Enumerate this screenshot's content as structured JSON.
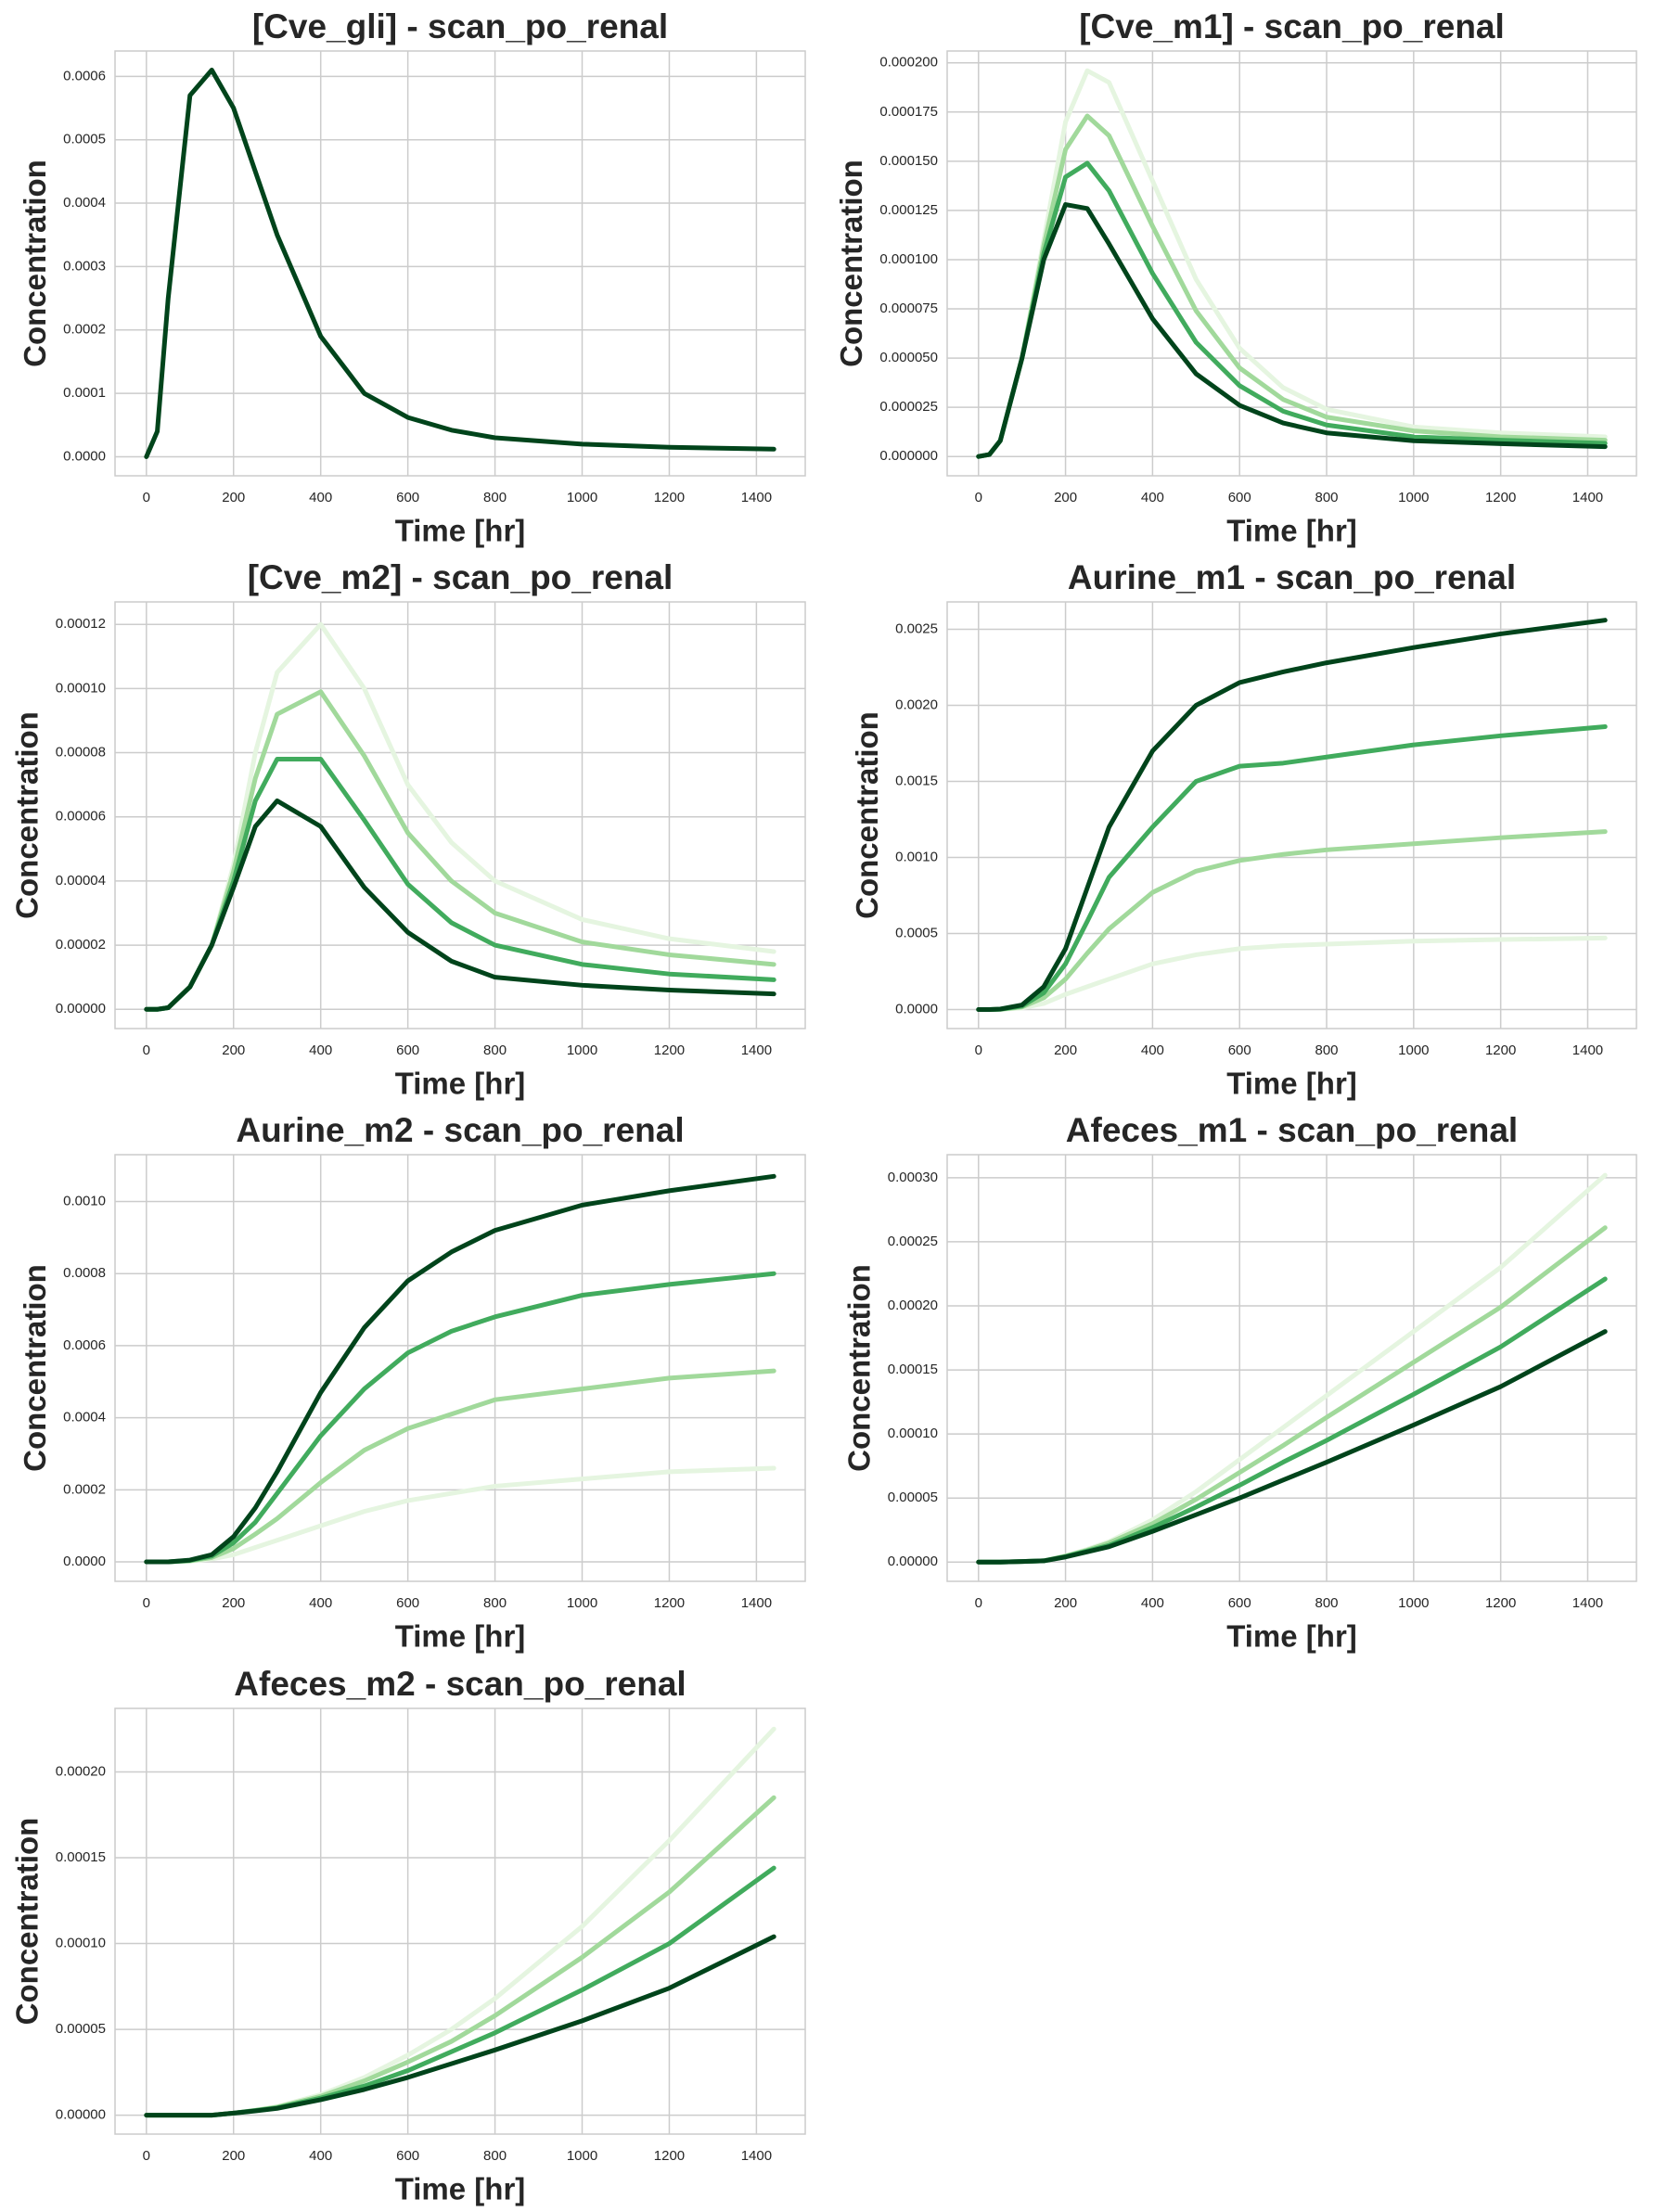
{
  "chart_data": [
    {
      "type": "line",
      "title": "[Cve_gli] - scan_po_renal",
      "xlabel": "Time [hr]",
      "ylabel": "Concentration",
      "x": [
        0,
        25,
        50,
        100,
        150,
        200,
        250,
        300,
        400,
        500,
        600,
        700,
        800,
        1000,
        1200,
        1440
      ],
      "xlim": [
        -72,
        1512
      ],
      "xticks": [
        0,
        200,
        400,
        600,
        800,
        1000,
        1200,
        1400
      ],
      "ylim": [
        -3e-05,
        0.00064
      ],
      "yticks": [
        {
          "value": 0,
          "label": "0.0000"
        },
        {
          "value": 0.0001,
          "label": "0.0001"
        },
        {
          "value": 0.0002,
          "label": "0.0002"
        },
        {
          "value": 0.0003,
          "label": "0.0003"
        },
        {
          "value": 0.0004,
          "label": "0.0004"
        },
        {
          "value": 0.0005,
          "label": "0.0005"
        },
        {
          "value": 0.0006,
          "label": "0.0006"
        }
      ],
      "grid": true,
      "series": [
        {
          "color": "#00441b",
          "values": [
            0,
            4e-05,
            0.00025,
            0.00057,
            0.00061,
            0.00055,
            0.00045,
            0.00035,
            0.00019,
            0.0001,
            6.2e-05,
            4.2e-05,
            3e-05,
            2e-05,
            1.5e-05,
            1.2e-05
          ]
        }
      ]
    },
    {
      "type": "line",
      "title": "[Cve_m1] - scan_po_renal",
      "xlabel": "Time [hr]",
      "ylabel": "Concentration",
      "x": [
        0,
        25,
        50,
        100,
        150,
        200,
        250,
        300,
        400,
        500,
        600,
        700,
        800,
        1000,
        1200,
        1440
      ],
      "xlim": [
        -72,
        1512
      ],
      "xticks": [
        0,
        200,
        400,
        600,
        800,
        1000,
        1200,
        1400
      ],
      "ylim": [
        -9.8e-06,
        0.000206
      ],
      "yticks": [
        {
          "value": 0,
          "label": "0.000000"
        },
        {
          "value": 2.5e-05,
          "label": "0.000025"
        },
        {
          "value": 5e-05,
          "label": "0.000050"
        },
        {
          "value": 7.5e-05,
          "label": "0.000075"
        },
        {
          "value": 0.0001,
          "label": "0.000100"
        },
        {
          "value": 0.000125,
          "label": "0.000125"
        },
        {
          "value": 0.00015,
          "label": "0.000150"
        },
        {
          "value": 0.000175,
          "label": "0.000175"
        },
        {
          "value": 0.0002,
          "label": "0.000200"
        }
      ],
      "grid": true,
      "series": [
        {
          "color": "#e5f5e0",
          "values": [
            0,
            1e-06,
            8e-06,
            5e-05,
            0.00011,
            0.00017,
            0.000196,
            0.00019,
            0.00014,
            9e-05,
            5.5e-05,
            3.5e-05,
            2.4e-05,
            1.5e-05,
            1.2e-05,
            1e-05
          ]
        },
        {
          "color": "#a1d99b",
          "values": [
            0,
            1e-06,
            8e-06,
            5e-05,
            0.000107,
            0.000156,
            0.000173,
            0.000163,
            0.000117,
            7.4e-05,
            4.5e-05,
            2.9e-05,
            2e-05,
            1.3e-05,
            1e-05,
            8.3e-06
          ]
        },
        {
          "color": "#41ab5d",
          "values": [
            0,
            1e-06,
            8e-06,
            5e-05,
            0.000103,
            0.000142,
            0.000149,
            0.000135,
            9.3e-05,
            5.8e-05,
            3.6e-05,
            2.3e-05,
            1.6e-05,
            1e-05,
            8.3e-06,
            6.7e-06
          ]
        },
        {
          "color": "#00441b",
          "values": [
            0,
            1e-06,
            8e-06,
            5e-05,
            0.0001,
            0.000128,
            0.000126,
            0.000108,
            7e-05,
            4.2e-05,
            2.6e-05,
            1.7e-05,
            1.2e-05,
            8e-06,
            6.5e-06,
            5e-06
          ]
        }
      ]
    },
    {
      "type": "line",
      "title": "[Cve_m2] - scan_po_renal",
      "xlabel": "Time [hr]",
      "ylabel": "Concentration",
      "x": [
        0,
        25,
        50,
        100,
        150,
        200,
        250,
        300,
        400,
        500,
        600,
        700,
        800,
        1000,
        1200,
        1440
      ],
      "xlim": [
        -72,
        1512
      ],
      "xticks": [
        0,
        200,
        400,
        600,
        800,
        1000,
        1200,
        1400
      ],
      "ylim": [
        -6e-06,
        0.000127
      ],
      "yticks": [
        {
          "value": 0,
          "label": "0.00000"
        },
        {
          "value": 2e-05,
          "label": "0.00002"
        },
        {
          "value": 4e-05,
          "label": "0.00004"
        },
        {
          "value": 6e-05,
          "label": "0.00006"
        },
        {
          "value": 8e-05,
          "label": "0.00008"
        },
        {
          "value": 0.0001,
          "label": "0.00010"
        },
        {
          "value": 0.00012,
          "label": "0.00012"
        }
      ],
      "grid": true,
      "series": [
        {
          "color": "#e5f5e0",
          "values": [
            0,
            0,
            5e-07,
            7e-06,
            2e-05,
            4.5e-05,
            8e-05,
            0.000105,
            0.00012,
            0.0001,
            7e-05,
            5.2e-05,
            4e-05,
            2.8e-05,
            2.2e-05,
            1.8e-05
          ]
        },
        {
          "color": "#a1d99b",
          "values": [
            0,
            0,
            5e-07,
            7e-06,
            2e-05,
            4.3e-05,
            7.2e-05,
            9.2e-05,
            9.9e-05,
            7.9e-05,
            5.5e-05,
            4e-05,
            3e-05,
            2.1e-05,
            1.7e-05,
            1.4e-05
          ]
        },
        {
          "color": "#41ab5d",
          "values": [
            0,
            0,
            5e-07,
            7e-06,
            2e-05,
            4e-05,
            6.5e-05,
            7.8e-05,
            7.8e-05,
            5.9e-05,
            3.9e-05,
            2.7e-05,
            2e-05,
            1.4e-05,
            1.1e-05,
            9.2e-06
          ]
        },
        {
          "color": "#00441b",
          "values": [
            0,
            0,
            5e-07,
            7e-06,
            2e-05,
            3.8e-05,
            5.7e-05,
            6.5e-05,
            5.7e-05,
            3.8e-05,
            2.4e-05,
            1.5e-05,
            1e-05,
            7.5e-06,
            6e-06,
            4.8e-06
          ]
        }
      ]
    },
    {
      "type": "line",
      "title": "Aurine_m1 - scan_po_renal",
      "xlabel": "Time [hr]",
      "ylabel": "Concentration",
      "x": [
        0,
        25,
        50,
        100,
        150,
        200,
        250,
        300,
        400,
        500,
        600,
        700,
        800,
        1000,
        1200,
        1440
      ],
      "xlim": [
        -72,
        1512
      ],
      "xticks": [
        0,
        200,
        400,
        600,
        800,
        1000,
        1200,
        1400
      ],
      "ylim": [
        -0.000125,
        0.00268
      ],
      "yticks": [
        {
          "value": 0,
          "label": "0.0000"
        },
        {
          "value": 0.0005,
          "label": "0.0005"
        },
        {
          "value": 0.001,
          "label": "0.0010"
        },
        {
          "value": 0.0015,
          "label": "0.0015"
        },
        {
          "value": 0.002,
          "label": "0.0020"
        },
        {
          "value": 0.0025,
          "label": "0.0025"
        }
      ],
      "grid": true,
      "series": [
        {
          "color": "#e5f5e0",
          "values": [
            0,
            0,
            1e-06,
            1e-05,
            4e-05,
            0.0001,
            0.00015,
            0.0002,
            0.0003,
            0.00036,
            0.0004,
            0.00042,
            0.00043,
            0.00045,
            0.00046,
            0.00047
          ]
        },
        {
          "color": "#a1d99b",
          "values": [
            0,
            0,
            1.7e-06,
            1.7e-05,
            7.7e-05,
            0.0002,
            0.00037,
            0.00053,
            0.00077,
            0.00091,
            0.00098,
            0.00102,
            0.00105,
            0.00109,
            0.00113,
            0.00117
          ]
        },
        {
          "color": "#41ab5d",
          "values": [
            0,
            0,
            2.3e-06,
            2.3e-05,
            0.00011,
            0.0003,
            0.00058,
            0.00087,
            0.0012,
            0.0015,
            0.0016,
            0.00162,
            0.00166,
            0.00174,
            0.0018,
            0.00186
          ]
        },
        {
          "color": "#00441b",
          "values": [
            0,
            0,
            3e-06,
            3e-05,
            0.00015,
            0.0004,
            0.0008,
            0.0012,
            0.0017,
            0.002,
            0.00215,
            0.00222,
            0.00228,
            0.00238,
            0.00247,
            0.00256
          ]
        }
      ]
    },
    {
      "type": "line",
      "title": "Aurine_m2 - scan_po_renal",
      "xlabel": "Time [hr]",
      "ylabel": "Concentration",
      "x": [
        0,
        25,
        50,
        100,
        150,
        200,
        250,
        300,
        400,
        500,
        600,
        700,
        800,
        1000,
        1200,
        1440
      ],
      "xlim": [
        -72,
        1512
      ],
      "xticks": [
        0,
        200,
        400,
        600,
        800,
        1000,
        1200,
        1400
      ],
      "ylim": [
        -5.4e-05,
        0.00113
      ],
      "yticks": [
        {
          "value": 0,
          "label": "0.0000"
        },
        {
          "value": 0.0002,
          "label": "0.0002"
        },
        {
          "value": 0.0004,
          "label": "0.0004"
        },
        {
          "value": 0.0006,
          "label": "0.0006"
        },
        {
          "value": 0.0008,
          "label": "0.0008"
        },
        {
          "value": 0.001,
          "label": "0.0010"
        }
      ],
      "grid": true,
      "series": [
        {
          "color": "#e5f5e0",
          "values": [
            0,
            0,
            0,
            2e-06,
            8e-06,
            2e-05,
            4e-05,
            6e-05,
            0.0001,
            0.00014,
            0.00017,
            0.00019,
            0.00021,
            0.00023,
            0.00025,
            0.00026
          ]
        },
        {
          "color": "#a1d99b",
          "values": [
            0,
            0,
            0,
            3e-06,
            1.2e-05,
            3.7e-05,
            7.7e-05,
            0.00012,
            0.00022,
            0.00031,
            0.00037,
            0.00041,
            0.00045,
            0.00048,
            0.00051,
            0.00053
          ]
        },
        {
          "color": "#41ab5d",
          "values": [
            0,
            0,
            0,
            4e-06,
            1.6e-05,
            5.3e-05,
            0.00011,
            0.00019,
            0.00035,
            0.00048,
            0.00058,
            0.00064,
            0.00068,
            0.00074,
            0.00077,
            0.0008
          ]
        },
        {
          "color": "#00441b",
          "values": [
            0,
            0,
            0,
            5e-06,
            2e-05,
            7e-05,
            0.00015,
            0.00025,
            0.00047,
            0.00065,
            0.00078,
            0.00086,
            0.00092,
            0.00099,
            0.00103,
            0.00107
          ]
        }
      ]
    },
    {
      "type": "line",
      "title": "Afeces_m1 - scan_po_renal",
      "xlabel": "Time [hr]",
      "ylabel": "Concentration",
      "x": [
        0,
        25,
        50,
        100,
        150,
        200,
        250,
        300,
        400,
        500,
        600,
        700,
        800,
        1000,
        1200,
        1440
      ],
      "xlim": [
        -72,
        1512
      ],
      "xticks": [
        0,
        200,
        400,
        600,
        800,
        1000,
        1200,
        1400
      ],
      "ylim": [
        -1.5e-05,
        0.000318
      ],
      "yticks": [
        {
          "value": 0,
          "label": "0.00000"
        },
        {
          "value": 5e-05,
          "label": "0.00005"
        },
        {
          "value": 0.0001,
          "label": "0.00010"
        },
        {
          "value": 0.00015,
          "label": "0.00015"
        },
        {
          "value": 0.0002,
          "label": "0.00020"
        },
        {
          "value": 0.00025,
          "label": "0.00025"
        },
        {
          "value": 0.0003,
          "label": "0.00030"
        }
      ],
      "grid": true,
      "series": [
        {
          "color": "#e5f5e0",
          "values": [
            0,
            0,
            0,
            5e-07,
            1e-06,
            5e-06,
            1e-05,
            1.6e-05,
            3.3e-05,
            5.5e-05,
            8e-05,
            0.000105,
            0.00013,
            0.00018,
            0.00023,
            0.000302
          ]
        },
        {
          "color": "#a1d99b",
          "values": [
            0,
            0,
            0,
            5e-07,
            1e-06,
            4.7e-06,
            9.3e-06,
            1.5e-05,
            3e-05,
            4.9e-05,
            7e-05,
            9.1e-05,
            0.000113,
            0.000156,
            0.000199,
            0.000261
          ]
        },
        {
          "color": "#41ab5d",
          "values": [
            0,
            0,
            0,
            5e-07,
            1e-06,
            4.3e-06,
            8.7e-06,
            1.3e-05,
            2.7e-05,
            4.3e-05,
            6e-05,
            7.8e-05,
            9.5e-05,
            0.000131,
            0.000168,
            0.000221
          ]
        },
        {
          "color": "#00441b",
          "values": [
            0,
            0,
            0,
            5e-07,
            1e-06,
            4e-06,
            8e-06,
            1.2e-05,
            2.4e-05,
            3.7e-05,
            5e-05,
            6.4e-05,
            7.8e-05,
            0.000107,
            0.000137,
            0.00018
          ]
        }
      ]
    },
    {
      "type": "line",
      "title": "Afeces_m2 - scan_po_renal",
      "xlabel": "Time [hr]",
      "ylabel": "Concentration",
      "x": [
        0,
        25,
        50,
        100,
        150,
        200,
        250,
        300,
        400,
        500,
        600,
        700,
        800,
        1000,
        1200,
        1440
      ],
      "xlim": [
        -72,
        1512
      ],
      "xticks": [
        0,
        200,
        400,
        600,
        800,
        1000,
        1200,
        1400
      ],
      "ylim": [
        -1.1e-05,
        0.000237
      ],
      "yticks": [
        {
          "value": 0,
          "label": "0.00000"
        },
        {
          "value": 5e-05,
          "label": "0.00005"
        },
        {
          "value": 0.0001,
          "label": "0.00010"
        },
        {
          "value": 0.00015,
          "label": "0.00015"
        },
        {
          "value": 0.0002,
          "label": "0.00020"
        }
      ],
      "grid": true,
      "series": [
        {
          "color": "#e5f5e0",
          "values": [
            0,
            0,
            0,
            0,
            0,
            1.2e-06,
            3e-06,
            5e-06,
            1.2e-05,
            2.2e-05,
            3.5e-05,
            5e-05,
            6.8e-05,
            0.00011,
            0.00016,
            0.000225
          ]
        },
        {
          "color": "#a1d99b",
          "values": [
            0,
            0,
            0,
            0,
            0,
            1.2e-06,
            2.8e-06,
            4.7e-06,
            1.1e-05,
            2e-05,
            3.1e-05,
            4.3e-05,
            5.8e-05,
            9.2e-05,
            0.00013,
            0.000185
          ]
        },
        {
          "color": "#41ab5d",
          "values": [
            0,
            0,
            0,
            0,
            0,
            1.2e-06,
            2.7e-06,
            4.3e-06,
            1e-05,
            1.7e-05,
            2.6e-05,
            3.7e-05,
            4.8e-05,
            7.3e-05,
            0.0001,
            0.000144
          ]
        },
        {
          "color": "#00441b",
          "values": [
            0,
            0,
            0,
            0,
            0,
            1.2e-06,
            2.5e-06,
            4e-06,
            9e-06,
            1.5e-05,
            2.2e-05,
            3e-05,
            3.8e-05,
            5.5e-05,
            7.4e-05,
            0.000104
          ]
        }
      ]
    }
  ]
}
